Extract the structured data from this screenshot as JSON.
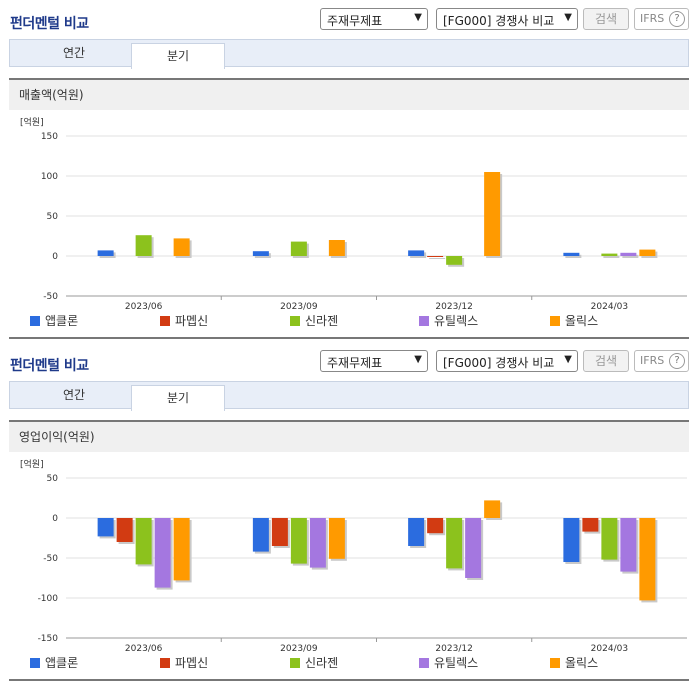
{
  "header": {
    "title": "펀더멘털 비교",
    "select1": "주재무제표",
    "select2": "[FG000] 경쟁사 비교",
    "search_label": "검색",
    "ifrs_label": "IFRS",
    "help": "?"
  },
  "tabs": [
    "연간",
    "분기"
  ],
  "active_tab": "분기",
  "legend": [
    {
      "name": "앱클론",
      "color": "#2b6cdf"
    },
    {
      "name": "파멥신",
      "color": "#d23b12"
    },
    {
      "name": "신라젠",
      "color": "#8cc21d"
    },
    {
      "name": "유틸렉스",
      "color": "#a477e0"
    },
    {
      "name": "올릭스",
      "color": "#ff9a00"
    }
  ],
  "chart_data": [
    {
      "type": "bar",
      "title": "매출액(억원)",
      "ylabel": "[억원]",
      "ylim": [
        -50,
        150
      ],
      "yticks": [
        -50,
        0,
        50,
        100,
        150
      ],
      "categories": [
        "2023/06",
        "2023/09",
        "2023/12",
        "2024/03"
      ],
      "series": [
        {
          "name": "앱클론",
          "values": [
            7,
            6,
            7,
            4
          ]
        },
        {
          "name": "파멥신",
          "values": [
            0,
            0,
            -1,
            0
          ]
        },
        {
          "name": "신라젠",
          "values": [
            26,
            18,
            -11,
            3
          ]
        },
        {
          "name": "유틸렉스",
          "values": [
            0,
            0,
            0,
            4
          ]
        },
        {
          "name": "올릭스",
          "values": [
            22,
            20,
            105,
            8
          ]
        }
      ]
    },
    {
      "type": "bar",
      "title": "영업이익(억원)",
      "ylabel": "[억원]",
      "ylim": [
        -150,
        50
      ],
      "yticks": [
        -150,
        -100,
        -50,
        0,
        50
      ],
      "categories": [
        "2023/06",
        "2023/09",
        "2023/12",
        "2024/03"
      ],
      "series": [
        {
          "name": "앱클론",
          "values": [
            -23,
            -42,
            -35,
            -55
          ]
        },
        {
          "name": "파멥신",
          "values": [
            -30,
            -35,
            -19,
            -17
          ]
        },
        {
          "name": "신라젠",
          "values": [
            -58,
            -57,
            -63,
            -52
          ]
        },
        {
          "name": "유틸렉스",
          "values": [
            -87,
            -62,
            -75,
            -67
          ]
        },
        {
          "name": "올릭스",
          "values": [
            -78,
            -51,
            22,
            -103
          ]
        }
      ]
    }
  ]
}
